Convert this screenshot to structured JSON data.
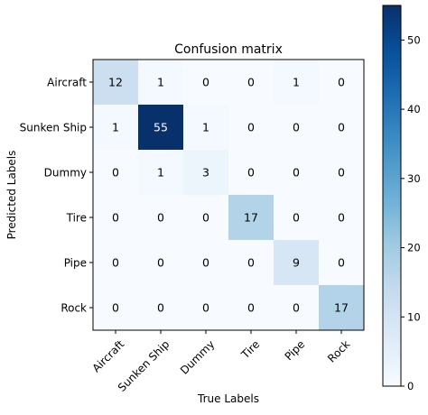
{
  "chart_data": {
    "type": "heatmap",
    "title": "Confusion matrix",
    "xlabel": "True Labels",
    "ylabel": "Predicted Labels",
    "x_categories": [
      "Aircraft",
      "Sunken Ship",
      "Dummy",
      "Tire",
      "Pipe",
      "Rock"
    ],
    "y_categories": [
      "Aircraft",
      "Sunken Ship",
      "Dummy",
      "Tire",
      "Pipe",
      "Rock"
    ],
    "values": [
      [
        12,
        1,
        0,
        0,
        1,
        0
      ],
      [
        1,
        55,
        1,
        0,
        0,
        0
      ],
      [
        0,
        1,
        3,
        0,
        0,
        0
      ],
      [
        0,
        0,
        0,
        17,
        0,
        0
      ],
      [
        0,
        0,
        0,
        0,
        9,
        0
      ],
      [
        0,
        0,
        0,
        0,
        0,
        17
      ]
    ],
    "colormap": "Blues",
    "colorbar": {
      "min": 0,
      "max": 55,
      "ticks": [
        0,
        10,
        20,
        30,
        40,
        50
      ]
    },
    "colors": {
      "low": "#f7fbff",
      "high": "#08306b",
      "text_on_light": "#000000",
      "text_on_dark": "#ffffff"
    }
  }
}
